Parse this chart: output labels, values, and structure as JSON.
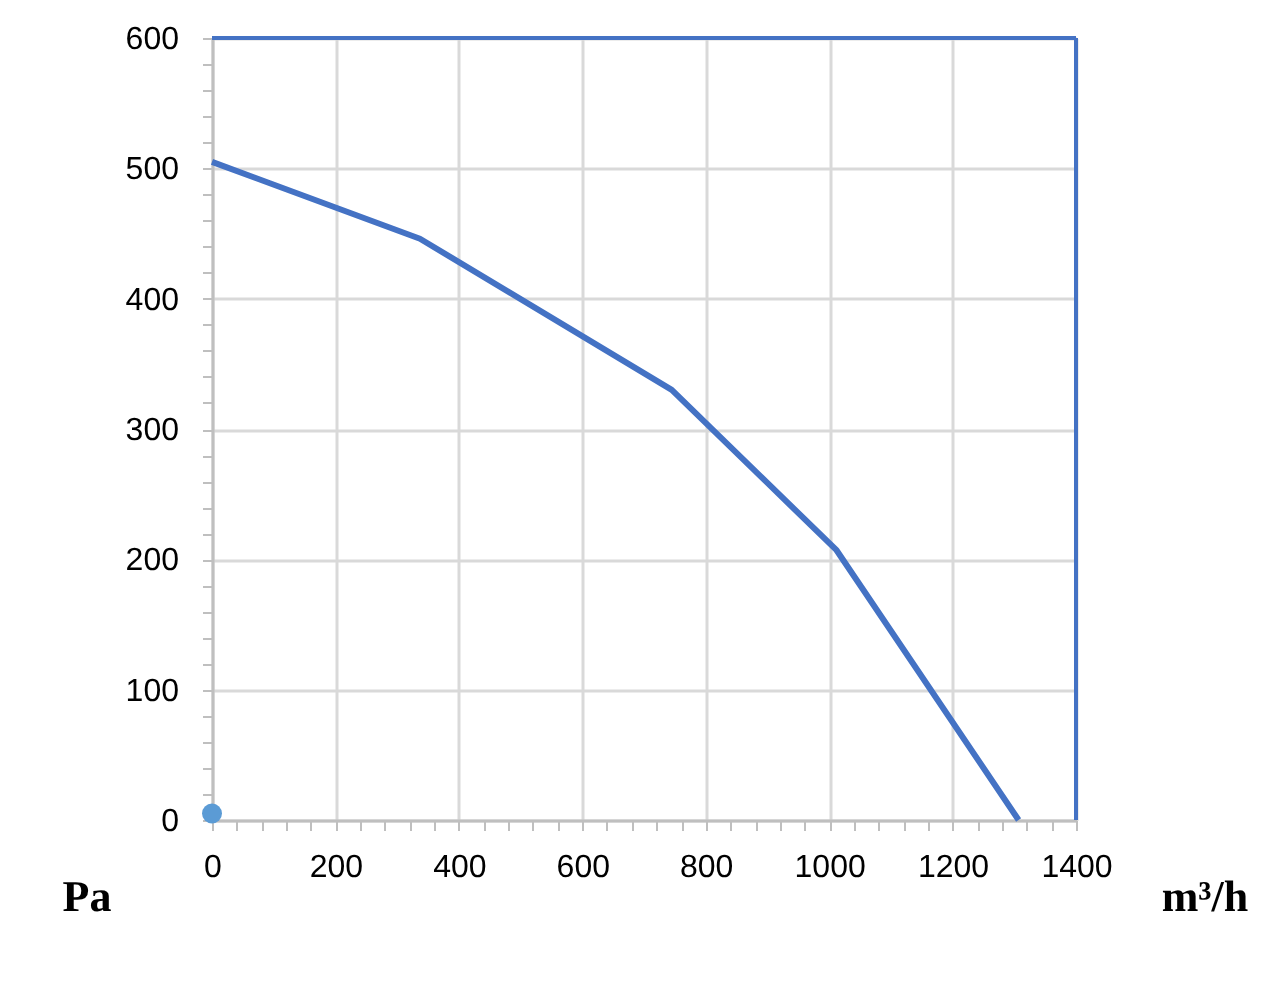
{
  "chart_data": {
    "type": "line",
    "xlabel": "m³/h",
    "ylabel": "Pa",
    "xlim": [
      0,
      1400
    ],
    "ylim": [
      0,
      600
    ],
    "xticks": [
      0,
      {
        "value": 40,
        "label": null
      },
      {
        "value": 80,
        "label": null
      },
      {
        "value": 120,
        "label": null
      },
      {
        "value": 160,
        "label": null
      },
      200,
      {
        "value": 240,
        "label": null
      },
      {
        "value": 280,
        "label": null
      },
      {
        "value": 320,
        "label": null
      },
      {
        "value": 360,
        "label": null
      },
      400,
      {
        "value": 440,
        "label": null
      },
      {
        "value": 480,
        "label": null
      },
      {
        "value": 520,
        "label": null
      },
      {
        "value": 560,
        "label": null
      },
      600,
      {
        "value": 640,
        "label": null
      },
      {
        "value": 680,
        "label": null
      },
      {
        "value": 720,
        "label": null
      },
      {
        "value": 760,
        "label": null
      },
      800,
      {
        "value": 840,
        "label": null
      },
      {
        "value": 880,
        "label": null
      },
      {
        "value": 920,
        "label": null
      },
      {
        "value": 960,
        "label": null
      },
      1000,
      {
        "value": 1040,
        "label": null
      },
      {
        "value": 1080,
        "label": null
      },
      {
        "value": 1120,
        "label": null
      },
      {
        "value": 1160,
        "label": null
      },
      1200,
      {
        "value": 1240,
        "label": null
      },
      {
        "value": 1280,
        "label": null
      },
      {
        "value": 1320,
        "label": null
      },
      {
        "value": 1360,
        "label": null
      },
      1400
    ],
    "yticks": [
      0,
      {
        "value": 20,
        "label": null
      },
      {
        "value": 40,
        "label": null
      },
      {
        "value": 60,
        "label": null
      },
      {
        "value": 80,
        "label": null
      },
      100,
      {
        "value": 120,
        "label": null
      },
      {
        "value": 140,
        "label": null
      },
      {
        "value": 160,
        "label": null
      },
      {
        "value": 180,
        "label": null
      },
      200,
      {
        "value": 220,
        "label": null
      },
      {
        "value": 240,
        "label": null
      },
      {
        "value": 260,
        "label": null
      },
      {
        "value": 280,
        "label": null
      },
      300,
      {
        "value": 320,
        "label": null
      },
      {
        "value": 340,
        "label": null
      },
      {
        "value": 360,
        "label": null
      },
      {
        "value": 380,
        "label": null
      },
      400,
      {
        "value": 420,
        "label": null
      },
      {
        "value": 440,
        "label": null
      },
      {
        "value": 460,
        "label": null
      },
      {
        "value": 480,
        "label": null
      },
      500,
      {
        "value": 520,
        "label": null
      },
      {
        "value": 540,
        "label": null
      },
      {
        "value": 560,
        "label": null
      },
      {
        "value": 580,
        "label": null
      },
      600
    ],
    "grid": true,
    "ref_lines": [
      {
        "axis": "y",
        "value": 600,
        "color": "#4472c4"
      },
      {
        "axis": "x",
        "value": 1400,
        "color": "#4472c4"
      }
    ],
    "series": [
      {
        "color": "#4472c4",
        "x": [
          0,
          337,
          745,
          1012,
          1307
        ],
        "values": [
          505,
          446,
          330,
          207,
          0
        ]
      },
      {
        "type": "scatter",
        "marker": "circle",
        "color": "#5b9bd5",
        "x": [
          0
        ],
        "values": [
          5
        ]
      }
    ]
  }
}
